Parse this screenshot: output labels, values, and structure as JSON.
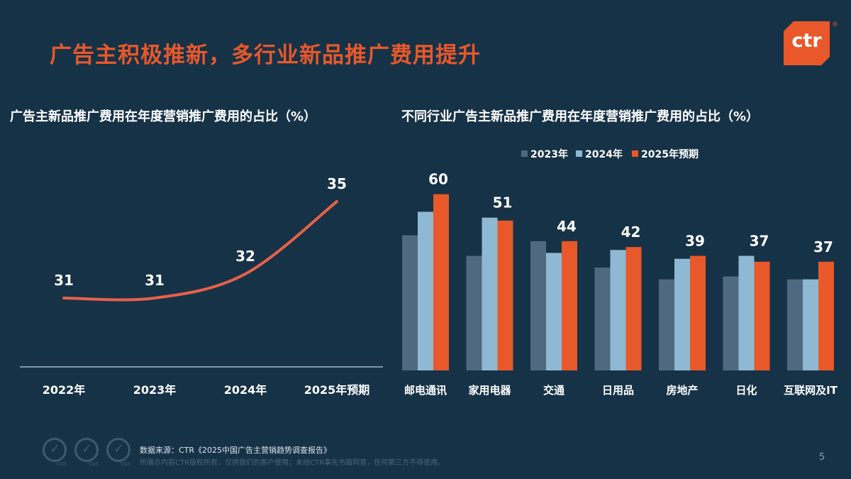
{
  "header": {
    "title": "广告主积极推新，多行业新品推广费用提升",
    "logo_text": "ctr",
    "logo_mark": "®"
  },
  "colors": {
    "background": "#163247",
    "accent": "#e8582a",
    "series_2023": "#4f6a80",
    "series_2024": "#8fb8d3",
    "series_2025": "#e8582a",
    "line": "#e8604a"
  },
  "chart_data": [
    {
      "type": "line",
      "title": "广告主新品推广费用在年度营销推广费用的占比（%）",
      "categories": [
        "2022年",
        "2023年",
        "2024年",
        "2025年预期"
      ],
      "values": [
        31,
        31,
        32,
        35
      ],
      "grid": false
    },
    {
      "type": "bar",
      "title": "不同行业广告主新品推广费用在年度营销推广费用的占比（%）",
      "categories": [
        "邮电通讯",
        "家用电器",
        "交通",
        "日用品",
        "房地产",
        "日化",
        "互联网及IT"
      ],
      "legend_position": "top",
      "grid": false,
      "series": [
        {
          "name": "2023年",
          "values": [
            46,
            39,
            44,
            35,
            31,
            32,
            31
          ]
        },
        {
          "name": "2024年",
          "values": [
            54,
            52,
            40,
            41,
            38,
            39,
            31
          ]
        },
        {
          "name": "2025年预期",
          "values": [
            60,
            51,
            44,
            42,
            39,
            37,
            37
          ]
        }
      ]
    }
  ],
  "footer": {
    "source": "数据来源：CTR《2025中国广告主营销趋势调查报告》",
    "note": "所展示内容CTR版权所有，仅供我们的客户使用；未经CTR事先书面同意，任何第三方不得使用。",
    "badge_label": "SGS",
    "page": "5"
  }
}
